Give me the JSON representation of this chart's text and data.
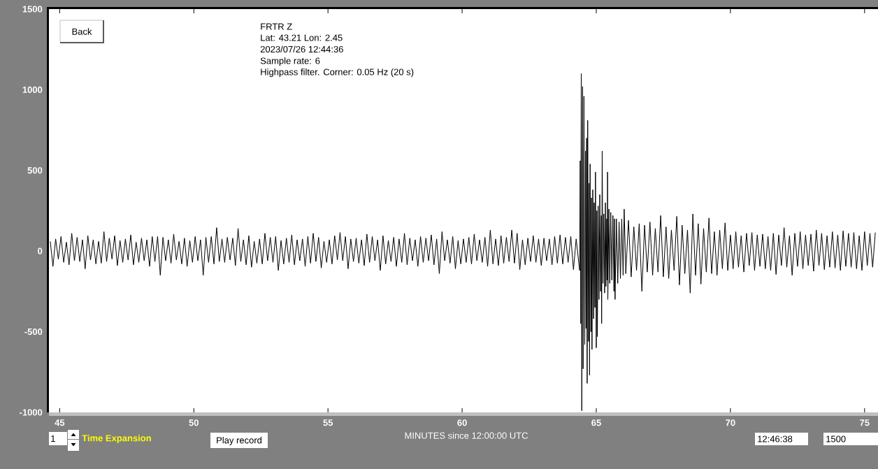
{
  "chart_data": {
    "type": "line",
    "title": "FRTR  Z",
    "xlabel": "MINUTES since 12:00:00 UTC",
    "annotations": [
      "Lat: 43.21 Lon: 2.45",
      "2023/07/26 12:44:36",
      "Sample rate: 6",
      "Highpass filter. Corner: 0.05 Hz (20 s)",
      "Back",
      "1",
      "Time Expansion",
      "Play record",
      "12:46:38",
      "1500"
    ],
    "xlim": [
      44.6,
      75.5
    ],
    "ylim": [
      -1000,
      1500
    ],
    "xticks": [
      45,
      50,
      55,
      60,
      65,
      70,
      75
    ],
    "yticks": [
      -1000,
      -500,
      0,
      500,
      1000,
      1500
    ],
    "color": "#000000",
    "x": [
      44.65,
      44.75,
      44.85,
      44.95,
      45.05,
      45.15,
      45.25,
      45.35,
      45.45,
      45.55,
      45.65,
      45.75,
      45.85,
      45.95,
      46.05,
      46.15,
      46.25,
      46.35,
      46.45,
      46.55,
      46.65,
      46.75,
      46.85,
      46.95,
      47.05,
      47.15,
      47.25,
      47.35,
      47.45,
      47.55,
      47.65,
      47.75,
      47.85,
      47.95,
      48.05,
      48.15,
      48.25,
      48.35,
      48.45,
      48.55,
      48.65,
      48.75,
      48.85,
      48.95,
      49.05,
      49.15,
      49.25,
      49.35,
      49.45,
      49.55,
      49.65,
      49.75,
      49.85,
      49.95,
      50.05,
      50.15,
      50.25,
      50.35,
      50.45,
      50.55,
      50.65,
      50.75,
      50.85,
      50.95,
      51.05,
      51.15,
      51.25,
      51.35,
      51.45,
      51.55,
      51.65,
      51.75,
      51.85,
      51.95,
      52.05,
      52.15,
      52.25,
      52.35,
      52.45,
      52.55,
      52.65,
      52.75,
      52.85,
      52.95,
      53.05,
      53.15,
      53.25,
      53.35,
      53.45,
      53.55,
      53.65,
      53.75,
      53.85,
      53.95,
      54.05,
      54.15,
      54.25,
      54.35,
      54.45,
      54.55,
      54.65,
      54.75,
      54.85,
      54.95,
      55.05,
      55.15,
      55.25,
      55.35,
      55.45,
      55.55,
      55.65,
      55.75,
      55.85,
      55.95,
      56.05,
      56.15,
      56.25,
      56.35,
      56.45,
      56.55,
      56.65,
      56.75,
      56.85,
      56.95,
      57.05,
      57.15,
      57.25,
      57.35,
      57.45,
      57.55,
      57.65,
      57.75,
      57.85,
      57.95,
      58.05,
      58.15,
      58.25,
      58.35,
      58.45,
      58.55,
      58.65,
      58.75,
      58.85,
      58.95,
      59.05,
      59.15,
      59.25,
      59.35,
      59.45,
      59.55,
      59.65,
      59.75,
      59.85,
      59.95,
      60.05,
      60.15,
      60.25,
      60.35,
      60.45,
      60.55,
      60.65,
      60.75,
      60.85,
      60.95,
      61.05,
      61.15,
      61.25,
      61.35,
      61.45,
      61.55,
      61.65,
      61.75,
      61.85,
      61.95,
      62.05,
      62.15,
      62.25,
      62.35,
      62.45,
      62.55,
      62.65,
      62.75,
      62.85,
      62.95,
      63.05,
      63.15,
      63.25,
      63.35,
      63.45,
      63.55,
      63.65,
      63.75,
      63.85,
      63.95,
      64.05,
      64.15,
      64.25,
      64.38,
      64.4,
      64.42,
      64.44,
      64.46,
      64.49,
      64.51,
      64.54,
      64.57,
      64.6,
      64.62,
      64.64,
      64.66,
      64.68,
      64.71,
      64.73,
      64.75,
      64.77,
      64.8,
      64.82,
      64.84,
      64.87,
      64.9,
      64.92,
      64.95,
      64.97,
      65.0,
      65.02,
      65.04,
      65.07,
      65.1,
      65.13,
      65.16,
      65.19,
      65.2,
      65.22,
      65.25,
      65.28,
      65.31,
      65.34,
      65.36,
      65.39,
      65.41,
      65.42,
      65.43,
      65.47,
      65.5,
      65.54,
      65.58,
      65.62,
      65.66,
      65.68,
      65.7,
      65.75,
      65.8,
      65.85,
      65.9,
      65.95,
      66.0,
      66.04,
      66.1,
      66.2,
      66.3,
      66.4,
      66.5,
      66.6,
      66.7,
      66.8,
      66.9,
      67.0,
      67.1,
      67.2,
      67.3,
      67.4,
      67.5,
      67.6,
      67.7,
      67.8,
      67.9,
      68.0,
      68.1,
      68.2,
      68.3,
      68.4,
      68.5,
      68.6,
      68.7,
      68.8,
      68.9,
      69.0,
      69.1,
      69.2,
      69.3,
      69.4,
      69.5,
      69.6,
      69.7,
      69.8,
      69.9,
      70.0,
      70.1,
      70.2,
      70.3,
      70.4,
      70.5,
      70.6,
      70.7,
      70.8,
      70.9,
      71.0,
      71.1,
      71.2,
      71.3,
      71.4,
      71.5,
      71.6,
      71.7,
      71.8,
      71.9,
      72.0,
      72.1,
      72.2,
      72.3,
      72.4,
      72.5,
      72.6,
      72.7,
      72.8,
      72.9,
      73.0,
      73.1,
      73.2,
      73.3,
      73.4,
      73.5,
      73.6,
      73.7,
      73.8,
      73.9,
      74.0,
      74.1,
      74.2,
      74.3,
      74.4,
      74.5,
      74.6,
      74.7,
      74.8,
      74.9,
      75.0,
      75.1,
      75.2,
      75.3,
      75.4
    ],
    "values": [
      60,
      -95,
      75,
      -50,
      90,
      -70,
      55,
      -85,
      110,
      -60,
      85,
      -65,
      70,
      -110,
      95,
      -55,
      70,
      -80,
      60,
      -75,
      120,
      -65,
      80,
      -50,
      95,
      -90,
      65,
      -70,
      75,
      -55,
      100,
      -85,
      55,
      -70,
      80,
      -60,
      70,
      -95,
      90,
      -65,
      90,
      -150,
      85,
      -60,
      70,
      -75,
      105,
      -55,
      60,
      -80,
      80,
      -95,
      65,
      -70,
      90,
      -60,
      70,
      -150,
      85,
      -70,
      90,
      -80,
      145,
      -65,
      75,
      -70,
      85,
      -55,
      80,
      -90,
      140,
      -65,
      70,
      -85,
      95,
      -100,
      60,
      -75,
      75,
      -80,
      110,
      -60,
      85,
      -70,
      90,
      -120,
      65,
      -80,
      80,
      -70,
      100,
      -85,
      70,
      -60,
      75,
      -95,
      90,
      -75,
      110,
      -65,
      85,
      -105,
      60,
      -70,
      70,
      -80,
      95,
      -55,
      115,
      -60,
      90,
      -110,
      75,
      -65,
      80,
      -75,
      70,
      -90,
      105,
      -70,
      90,
      -60,
      70,
      -120,
      95,
      -80,
      65,
      -65,
      85,
      -95,
      75,
      -70,
      110,
      -85,
      80,
      -60,
      70,
      -95,
      90,
      -70,
      80,
      -60,
      100,
      -85,
      75,
      -140,
      120,
      -60,
      70,
      -75,
      90,
      -110,
      65,
      -80,
      75,
      -70,
      85,
      -80,
      105,
      -60,
      70,
      -70,
      85,
      -95,
      130,
      -80,
      75,
      -90,
      95,
      -75,
      85,
      -65,
      130,
      -75,
      110,
      -115,
      70,
      -85,
      80,
      -65,
      95,
      -70,
      75,
      -90,
      80,
      -60,
      75,
      -85,
      90,
      -75,
      100,
      -80,
      85,
      -70,
      90,
      -115,
      75,
      -120,
      560,
      -450,
      1100,
      -990,
      1020,
      -730,
      960,
      -580,
      620,
      -480,
      700,
      -820,
      810,
      -560,
      420,
      -770,
      540,
      -500,
      330,
      -610,
      380,
      -420,
      300,
      -350,
      490,
      -600,
      250,
      -530,
      280,
      -300,
      350,
      -250,
      220,
      -450,
      620,
      -200,
      230,
      -260,
      300,
      -220,
      200,
      -180,
      490,
      -300,
      260,
      -200,
      240,
      -180,
      220,
      -250,
      200,
      -300,
      200,
      -200,
      180,
      -170,
      200,
      -150,
      260,
      -140,
      190,
      -160,
      150,
      -120,
      170,
      -250,
      160,
      -130,
      180,
      -150,
      140,
      -130,
      220,
      -160,
      150,
      -170,
      130,
      -120,
      215,
      -210,
      160,
      -140,
      130,
      -260,
      230,
      -150,
      170,
      -205,
      140,
      -130,
      205,
      -140,
      120,
      -150,
      130,
      -110,
      175,
      -120,
      100,
      -110,
      120,
      -100,
      95,
      -130,
      110,
      -90,
      115,
      -120,
      100,
      -95,
      105,
      -110,
      90,
      -120,
      110,
      -145,
      100,
      -90,
      145,
      -100,
      95,
      -150,
      110,
      -95,
      120,
      -110,
      100,
      -90,
      105,
      -125,
      130,
      -90,
      110,
      -115,
      95,
      -100,
      120,
      -105,
      100,
      -120,
      125,
      -95,
      110,
      -100,
      115,
      -110,
      95,
      -120,
      120,
      -90,
      110,
      -100,
      115
    ]
  }
}
